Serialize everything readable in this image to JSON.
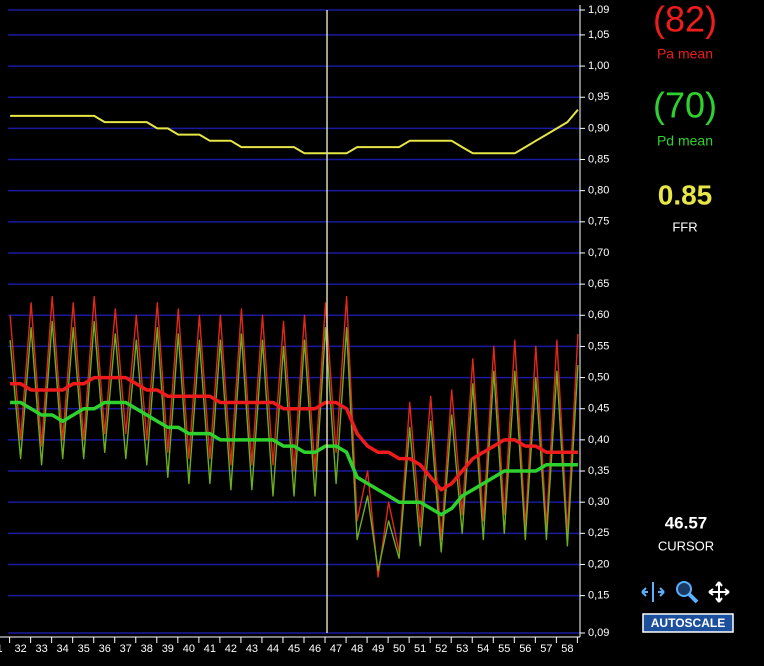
{
  "chart_data": {
    "type": "line",
    "x": [
      31.5,
      32,
      32.5,
      33,
      33.5,
      34,
      34.5,
      35,
      35.5,
      36,
      36.5,
      37,
      37.5,
      38,
      38.5,
      39,
      39.5,
      40,
      40.5,
      41,
      41.5,
      42,
      42.5,
      43,
      43.5,
      44,
      44.5,
      45,
      45.5,
      46,
      46.5,
      47,
      47.5,
      48,
      48.5,
      49,
      49.5,
      50,
      50.5,
      51,
      51.5,
      52,
      52.5,
      53,
      53.5,
      54,
      54.5,
      55,
      55.5,
      56,
      56.5,
      57,
      57.5,
      58,
      58.5
    ],
    "xlim": [
      31.4,
      58.6
    ],
    "xticks": [
      {
        "value": 31,
        "label": "1"
      },
      32,
      33,
      34,
      35,
      36,
      37,
      38,
      39,
      40,
      41,
      42,
      43,
      44,
      45,
      46,
      47,
      48,
      49,
      50,
      51,
      52,
      53,
      54,
      55,
      56,
      57,
      58
    ],
    "ylim": [
      0.09,
      1.09
    ],
    "yticks": [
      {
        "value": 1.09,
        "label": "1,09"
      },
      {
        "value": 1.05,
        "label": "1,05"
      },
      {
        "value": 1.0,
        "label": "1,00"
      },
      {
        "value": 0.95,
        "label": "0,95"
      },
      {
        "value": 0.9,
        "label": "0,90"
      },
      {
        "value": 0.85,
        "label": "0,85"
      },
      {
        "value": 0.8,
        "label": "0,80"
      },
      {
        "value": 0.75,
        "label": "0,75"
      },
      {
        "value": 0.7,
        "label": "0,70"
      },
      {
        "value": 0.65,
        "label": "0,65"
      },
      {
        "value": 0.6,
        "label": "0,60"
      },
      {
        "value": 0.55,
        "label": "0,55"
      },
      {
        "value": 0.5,
        "label": "0,50"
      },
      {
        "value": 0.45,
        "label": "0,45"
      },
      {
        "value": 0.4,
        "label": "0,40"
      },
      {
        "value": 0.35,
        "label": "0,35"
      },
      {
        "value": 0.3,
        "label": "0,30"
      },
      {
        "value": 0.25,
        "label": "0,25"
      },
      {
        "value": 0.2,
        "label": "0,20"
      },
      {
        "value": 0.15,
        "label": "0,15"
      },
      {
        "value": 0.09,
        "label": "0,09"
      }
    ],
    "grid": true,
    "grid_color": "#1a1aa0",
    "series": [
      {
        "color": "#e02818",
        "width": 1.4,
        "values": [
          0.6,
          0.4,
          0.62,
          0.39,
          0.63,
          0.4,
          0.62,
          0.4,
          0.63,
          0.41,
          0.61,
          0.41,
          0.6,
          0.4,
          0.62,
          0.38,
          0.61,
          0.37,
          0.6,
          0.37,
          0.6,
          0.36,
          0.61,
          0.36,
          0.6,
          0.36,
          0.59,
          0.35,
          0.6,
          0.35,
          0.62,
          0.38,
          0.63,
          0.27,
          0.35,
          0.18,
          0.3,
          0.22,
          0.46,
          0.26,
          0.47,
          0.24,
          0.48,
          0.28,
          0.53,
          0.27,
          0.55,
          0.28,
          0.56,
          0.26,
          0.55,
          0.26,
          0.56,
          0.25,
          0.57
        ]
      },
      {
        "color": "#6cb020",
        "width": 1.4,
        "values": [
          0.56,
          0.37,
          0.58,
          0.36,
          0.59,
          0.37,
          0.58,
          0.37,
          0.59,
          0.38,
          0.57,
          0.37,
          0.56,
          0.36,
          0.58,
          0.34,
          0.57,
          0.33,
          0.56,
          0.33,
          0.56,
          0.32,
          0.57,
          0.32,
          0.56,
          0.31,
          0.55,
          0.31,
          0.56,
          0.31,
          0.58,
          0.33,
          0.58,
          0.24,
          0.31,
          0.19,
          0.27,
          0.21,
          0.42,
          0.23,
          0.43,
          0.22,
          0.44,
          0.25,
          0.49,
          0.24,
          0.51,
          0.25,
          0.51,
          0.24,
          0.5,
          0.24,
          0.51,
          0.23,
          0.52
        ]
      },
      {
        "name": "Pa mean",
        "readout": "(82)",
        "color": "#ee1c1c",
        "width": 3.5,
        "values": [
          0.49,
          0.49,
          0.48,
          0.48,
          0.48,
          0.48,
          0.49,
          0.49,
          0.5,
          0.5,
          0.5,
          0.5,
          0.49,
          0.48,
          0.48,
          0.47,
          0.47,
          0.47,
          0.47,
          0.47,
          0.46,
          0.46,
          0.46,
          0.46,
          0.46,
          0.46,
          0.45,
          0.45,
          0.45,
          0.45,
          0.46,
          0.46,
          0.45,
          0.41,
          0.39,
          0.38,
          0.38,
          0.37,
          0.37,
          0.36,
          0.34,
          0.32,
          0.33,
          0.35,
          0.37,
          0.38,
          0.39,
          0.4,
          0.4,
          0.39,
          0.39,
          0.38,
          0.38,
          0.38,
          0.38
        ]
      },
      {
        "name": "Pd mean",
        "readout": "(70)",
        "color": "#2ed12e",
        "width": 3.5,
        "values": [
          0.46,
          0.46,
          0.45,
          0.44,
          0.44,
          0.43,
          0.44,
          0.45,
          0.45,
          0.46,
          0.46,
          0.46,
          0.45,
          0.44,
          0.43,
          0.42,
          0.42,
          0.41,
          0.41,
          0.41,
          0.4,
          0.4,
          0.4,
          0.4,
          0.4,
          0.4,
          0.39,
          0.39,
          0.38,
          0.38,
          0.39,
          0.39,
          0.38,
          0.34,
          0.33,
          0.32,
          0.31,
          0.3,
          0.3,
          0.3,
          0.29,
          0.28,
          0.29,
          0.31,
          0.32,
          0.33,
          0.34,
          0.35,
          0.35,
          0.35,
          0.35,
          0.36,
          0.36,
          0.36,
          0.36
        ]
      },
      {
        "name": "FFR",
        "readout": "0.85",
        "color": "#e6e646",
        "width": 2,
        "values": [
          0.92,
          0.92,
          0.92,
          0.92,
          0.92,
          0.92,
          0.92,
          0.92,
          0.92,
          0.91,
          0.91,
          0.91,
          0.91,
          0.91,
          0.9,
          0.9,
          0.89,
          0.89,
          0.89,
          0.88,
          0.88,
          0.88,
          0.87,
          0.87,
          0.87,
          0.87,
          0.87,
          0.87,
          0.86,
          0.86,
          0.86,
          0.86,
          0.86,
          0.87,
          0.87,
          0.87,
          0.87,
          0.87,
          0.88,
          0.88,
          0.88,
          0.88,
          0.88,
          0.87,
          0.86,
          0.86,
          0.86,
          0.86,
          0.86,
          0.87,
          0.88,
          0.89,
          0.9,
          0.91,
          0.93
        ]
      }
    ],
    "cursor": 46.57,
    "cursor_label": "CURSOR",
    "cursor_color": "#d8d8b0"
  },
  "controls": {
    "autoscale": "AUTOSCALE"
  }
}
